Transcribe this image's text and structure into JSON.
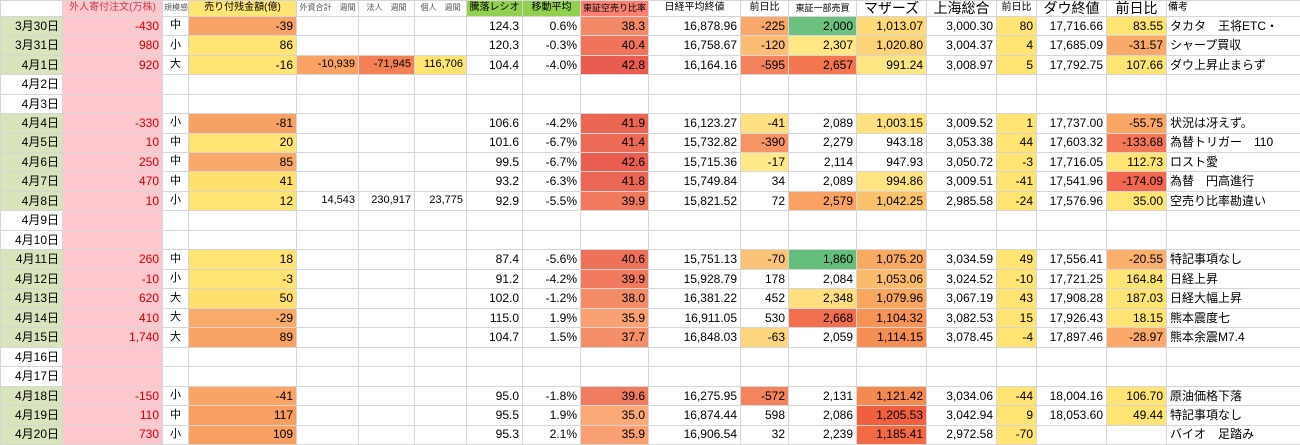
{
  "sheet": {
    "colors": {
      "date_shade": "#d8e4bc",
      "gridline": "#d6d6d6"
    },
    "columns": [
      {
        "key": "date",
        "label": "",
        "width": 62,
        "align": "right",
        "header": {
          "fz": 10
        }
      },
      {
        "key": "foreign-orders",
        "label": "外人寄付注文(万株)",
        "width": 100,
        "align": "right",
        "header": {
          "bg": "#ffc7ce",
          "fg": "#d23b4e",
          "fz": 10
        },
        "body": {
          "bg": "#ffc7ce",
          "fg": "#d60000"
        }
      },
      {
        "key": "scale",
        "label": "規模感",
        "width": 26,
        "align": "center",
        "header": {
          "fg": "#555555",
          "fz": 8
        },
        "body": {
          "fz": 11
        }
      },
      {
        "key": "short-balance",
        "label": "売り付残金額(億)",
        "width": 108,
        "align": "right",
        "header": {
          "bg": "#ffe573",
          "fz": 10
        }
      },
      {
        "key": "foreign-weekly",
        "label": "外資合計　週間",
        "width": 62,
        "align": "right",
        "header": {
          "fg": "#555555",
          "fz": 8
        },
        "body": {
          "fz": 11
        }
      },
      {
        "key": "corporate-weekly",
        "label": "法人　週間",
        "width": 56,
        "align": "right",
        "header": {
          "fg": "#555555",
          "fz": 8
        },
        "body": {
          "fz": 11
        }
      },
      {
        "key": "individual-weekly",
        "label": "個人　週間",
        "width": 52,
        "align": "right",
        "header": {
          "fg": "#555555",
          "fz": 8
        },
        "body": {
          "fz": 11
        }
      },
      {
        "key": "adv-dec-ratio",
        "label": "騰落レシオ",
        "width": 56,
        "align": "right",
        "header": {
          "bg": "#92d050",
          "fz": 10
        }
      },
      {
        "key": "moving-average",
        "label": "移動平均",
        "width": 58,
        "align": "right",
        "header": {
          "bg": "#92d050",
          "fz": 10
        }
      },
      {
        "key": "short-sell-ratio",
        "label": "東証空売り比率",
        "width": 68,
        "align": "right",
        "header": {
          "bg": "#fa8072",
          "fz": 9
        }
      },
      {
        "key": "nikkei-close",
        "label": "日経平均終値",
        "width": 92,
        "align": "right",
        "header": {
          "fz": 10
        }
      },
      {
        "key": "nikkei-change",
        "label": "前日比",
        "width": 48,
        "align": "right",
        "header": {
          "fz": 10
        }
      },
      {
        "key": "tse1-volume",
        "label": "東証一部売買",
        "width": 68,
        "align": "right",
        "header": {
          "fz": 9
        }
      },
      {
        "key": "mothers",
        "label": "マザーズ",
        "width": 70,
        "align": "right",
        "header": {
          "fz": 14
        }
      },
      {
        "key": "shanghai",
        "label": "上海総合",
        "width": 70,
        "align": "right",
        "header": {
          "fz": 14
        }
      },
      {
        "key": "shanghai-change",
        "label": "前日比",
        "width": 40,
        "align": "right",
        "header": {
          "fz": 10
        }
      },
      {
        "key": "dow-close",
        "label": "ダウ終値",
        "width": 70,
        "align": "right",
        "header": {
          "fz": 14
        }
      },
      {
        "key": "dow-change",
        "label": "前日比",
        "width": 60,
        "align": "right",
        "header": {
          "fz": 14
        }
      },
      {
        "key": "notes",
        "label": "備考",
        "width": 134,
        "align": "left",
        "header": {
          "fz": 10,
          "align": "left"
        }
      }
    ],
    "rows": [
      {
        "date": "3月30日",
        "shaded": true,
        "cells": [
          "-430",
          "中",
          {
            "t": "-39",
            "bg": "#f8a266"
          },
          "",
          "",
          "",
          "124.3",
          "0.6%",
          {
            "t": "38.3",
            "bg": "#f38966"
          },
          "16,878.96",
          {
            "t": "-225",
            "bg": "#f9a86b"
          },
          {
            "t": "2,000",
            "bg": "#6cc17e"
          },
          {
            "t": "1,013.07",
            "bg": "#fed97a"
          },
          "3,000.30",
          {
            "t": "80",
            "bg": "#ffe373"
          },
          "17,716.66",
          {
            "t": "83.55",
            "bg": "#ffe373"
          },
          "タカタ　王将ETC・"
        ]
      },
      {
        "date": "3月31日",
        "shaded": true,
        "cells": [
          "980",
          "小",
          {
            "t": "86",
            "bg": "#ffe373"
          },
          "",
          "",
          "",
          "120.3",
          "-0.3%",
          {
            "t": "40.4",
            "bg": "#ef745b"
          },
          "16,758.67",
          {
            "t": "-120",
            "bg": "#fbbd74"
          },
          {
            "t": "2,307",
            "bg": "#ffe884"
          },
          {
            "t": "1,020.80",
            "bg": "#fdd377"
          },
          "3,004.37",
          {
            "t": "4",
            "bg": "#ffe373"
          },
          "17,685.09",
          {
            "t": "-31.57",
            "bg": "#f9a96a"
          },
          "シャープ買収"
        ]
      },
      {
        "date": "4月1日",
        "shaded": true,
        "cells": [
          "920",
          "大",
          {
            "t": "-16",
            "bg": "#ffe373"
          },
          {
            "t": "-10,939",
            "bg": "#f9a263"
          },
          {
            "t": "-71,945",
            "bg": "#f48055"
          },
          {
            "t": "116,706",
            "bg": "#ffe373"
          },
          "104.4",
          "-4.0%",
          {
            "t": "42.8",
            "bg": "#e95c4f"
          },
          "16,164.16",
          {
            "t": "-595",
            "bg": "#f3825c"
          },
          {
            "t": "2,657",
            "bg": "#f3764f"
          },
          {
            "t": "991.24",
            "bg": "#ffe684"
          },
          "3,008.97",
          {
            "t": "5",
            "bg": "#ffe373"
          },
          "17,792.75",
          {
            "t": "107.66",
            "bg": "#ffe373"
          },
          "ダウ上昇止まらず"
        ]
      },
      {
        "date": "4月2日",
        "shaded": false,
        "cells": []
      },
      {
        "date": "4月3日",
        "shaded": false,
        "cells": []
      },
      {
        "date": "4月4日",
        "shaded": true,
        "cells": [
          "-330",
          "小",
          {
            "t": "-81",
            "bg": "#f8a164"
          },
          "",
          "",
          "",
          "106.6",
          "-4.2%",
          {
            "t": "41.9",
            "bg": "#eb6553"
          },
          "16,123.27",
          {
            "t": "-41",
            "bg": "#fee084"
          },
          "2,089",
          {
            "t": "1,003.15",
            "bg": "#ffe07e"
          },
          "3,009.52",
          {
            "t": "1",
            "bg": "#ffe373"
          },
          "17,737.00",
          {
            "t": "-55.75",
            "bg": "#f9a667"
          },
          "状況は冴えず。"
        ]
      },
      {
        "date": "4月5日",
        "shaded": true,
        "cells": [
          "10",
          "中",
          {
            "t": "20",
            "bg": "#ffe373"
          },
          "",
          "",
          "",
          "101.6",
          "-6.7%",
          {
            "t": "41.4",
            "bg": "#ec6a56"
          },
          "15,732.82",
          {
            "t": "-390",
            "bg": "#f79465"
          },
          "2,279",
          "943.18",
          "3,053.38",
          {
            "t": "44",
            "bg": "#ffe373"
          },
          "17,603.32",
          {
            "t": "-133.68",
            "bg": "#f4775a"
          },
          "為替トリガー　110"
        ]
      },
      {
        "date": "4月6日",
        "shaded": true,
        "cells": [
          "250",
          "中",
          {
            "t": "85",
            "bg": "#f9aa68"
          },
          "",
          "",
          "",
          "99.5",
          "-6.7%",
          {
            "t": "42.6",
            "bg": "#e95e50"
          },
          "15,715.36",
          {
            "t": "-17",
            "bg": "#ffe88a"
          },
          "2,114",
          "947.93",
          "3,050.72",
          {
            "t": "-3",
            "bg": "#ffe373"
          },
          "17,716.05",
          {
            "t": "112.73",
            "bg": "#ffe373"
          },
          "ロスト愛"
        ]
      },
      {
        "date": "4月7日",
        "shaded": true,
        "cells": [
          "470",
          "中",
          {
            "t": "41",
            "bg": "#ffe06f"
          },
          "",
          "",
          "",
          "93.2",
          "-6.3%",
          {
            "t": "41.8",
            "bg": "#eb6654"
          },
          "15,749.84",
          "34",
          "2,089",
          {
            "t": "994.86",
            "bg": "#ffe484"
          },
          "3,009.51",
          {
            "t": "-41",
            "bg": "#ffe373"
          },
          "17,541.96",
          {
            "t": "-174.09",
            "bg": "#f2674f"
          },
          "為替　円高進行"
        ]
      },
      {
        "date": "4月8日",
        "shaded": true,
        "cells": [
          "10",
          "小",
          {
            "t": "12",
            "bg": "#ffe373"
          },
          "14,543",
          "230,917",
          "23,775",
          "92.9",
          "-5.5%",
          {
            "t": "39.9",
            "bg": "#f0795e"
          },
          "15,821.52",
          "72",
          {
            "t": "2,579",
            "bg": "#f9a263"
          },
          {
            "t": "1,042.25",
            "bg": "#fbc26e"
          },
          "2,985.58",
          {
            "t": "-24",
            "bg": "#ffe373"
          },
          "17,576.96",
          {
            "t": "35.00",
            "bg": "#ffe373"
          },
          "空売り比率勘違い"
        ]
      },
      {
        "date": "4月9日",
        "shaded": false,
        "cells": []
      },
      {
        "date": "4月10日",
        "shaded": false,
        "cells": []
      },
      {
        "date": "4月11日",
        "shaded": true,
        "cells": [
          "260",
          "中",
          {
            "t": "18",
            "bg": "#ffe373"
          },
          "",
          "",
          "",
          "87.4",
          "-5.6%",
          {
            "t": "40.6",
            "bg": "#ee725a"
          },
          "15,751.13",
          {
            "t": "-70",
            "bg": "#fbc377"
          },
          {
            "t": "1,860",
            "bg": "#63be7b"
          },
          {
            "t": "1,075.20",
            "bg": "#f8aa62"
          },
          "3,034.59",
          {
            "t": "49",
            "bg": "#ffe373"
          },
          "17,556.41",
          {
            "t": "-20.55",
            "bg": "#faaf6c"
          },
          "特記事項なし"
        ]
      },
      {
        "date": "4月12日",
        "shaded": true,
        "cells": [
          "-10",
          "小",
          {
            "t": "-3",
            "bg": "#ffe373"
          },
          "",
          "",
          "",
          "91.2",
          "-4.2%",
          {
            "t": "39.9",
            "bg": "#f0795e"
          },
          "15,928.79",
          "178",
          "2,084",
          {
            "t": "1,053.06",
            "bg": "#fabb6a"
          },
          "3,024.52",
          {
            "t": "-10",
            "bg": "#ffe373"
          },
          "17,721.25",
          {
            "t": "164.84",
            "bg": "#ffe373"
          },
          "日経上昇"
        ]
      },
      {
        "date": "4月13日",
        "shaded": true,
        "cells": [
          "620",
          "大",
          {
            "t": "50",
            "bg": "#ffe06f"
          },
          "",
          "",
          "",
          "102.0",
          "-1.2%",
          {
            "t": "38.0",
            "bg": "#f48c68"
          },
          "16,381.22",
          "452",
          {
            "t": "2,348",
            "bg": "#fede7e"
          },
          {
            "t": "1,079.96",
            "bg": "#f8a760"
          },
          "3,067.19",
          {
            "t": "43",
            "bg": "#ffe373"
          },
          "17,908.28",
          {
            "t": "187.03",
            "bg": "#ffe373"
          },
          "日経大幅上昇"
        ]
      },
      {
        "date": "4月14日",
        "shaded": true,
        "cells": [
          "410",
          "大",
          {
            "t": "-29",
            "bg": "#f9ab69"
          },
          "",
          "",
          "",
          "115.0",
          "1.9%",
          {
            "t": "35.9",
            "bg": "#f9a172"
          },
          "16,911.05",
          "530",
          {
            "t": "2,668",
            "bg": "#f27050"
          },
          {
            "t": "1,104.32",
            "bg": "#f69456"
          },
          "3,082.53",
          {
            "t": "15",
            "bg": "#ffe373"
          },
          "17,926.43",
          {
            "t": "18.15",
            "bg": "#ffe373"
          },
          "熊本震度七"
        ]
      },
      {
        "date": "4月15日",
        "shaded": true,
        "cells": [
          "1,740",
          "大",
          {
            "t": "89",
            "bg": "#f8a263"
          },
          "",
          "",
          "",
          "104.7",
          "1.5%",
          {
            "t": "37.7",
            "bg": "#f58f69"
          },
          "16,848.03",
          {
            "t": "-63",
            "bg": "#fdd67f"
          },
          "2,059",
          {
            "t": "1,114.15",
            "bg": "#f58e53"
          },
          "3,078.45",
          {
            "t": "-4",
            "bg": "#ffe373"
          },
          "17,897.46",
          {
            "t": "-28.97",
            "bg": "#faa96a"
          },
          "熊本余震M7.4"
        ]
      },
      {
        "date": "4月16日",
        "shaded": false,
        "cells": []
      },
      {
        "date": "4月17日",
        "shaded": false,
        "cells": []
      },
      {
        "date": "4月18日",
        "shaded": true,
        "cells": [
          "-150",
          "小",
          {
            "t": "-41",
            "bg": "#f9a465"
          },
          "",
          "",
          "",
          "95.0",
          "-1.8%",
          {
            "t": "39.6",
            "bg": "#f07c5f"
          },
          "16,275.95",
          {
            "t": "-572",
            "bg": "#f3845d"
          },
          "2,131",
          {
            "t": "1,121.42",
            "bg": "#f58a51"
          },
          "3,034.06",
          {
            "t": "-44",
            "bg": "#ffe373"
          },
          "18,004.16",
          {
            "t": "106.70",
            "bg": "#ffe373"
          },
          "原油価格下落"
        ]
      },
      {
        "date": "4月19日",
        "shaded": true,
        "cells": [
          "110",
          "中",
          {
            "t": "117",
            "bg": "#f89e60"
          },
          "",
          "",
          "",
          "95.5",
          "1.9%",
          {
            "t": "35.0",
            "bg": "#fbaa77"
          },
          "16,874.44",
          "598",
          "2,086",
          {
            "t": "1,205.53",
            "bg": "#f15f3e"
          },
          "3,042.94",
          {
            "t": "9",
            "bg": "#ffe373"
          },
          "18,053.60",
          {
            "t": "49.44",
            "bg": "#ffe373"
          },
          "特記事項なし"
        ]
      },
      {
        "date": "4月20日",
        "shaded": true,
        "cells": [
          "730",
          "小",
          {
            "t": "109",
            "bg": "#f8a062"
          },
          "",
          "",
          "",
          "95.3",
          "2.1%",
          {
            "t": "35.9",
            "bg": "#f9a172"
          },
          "16,906.54",
          "32",
          "2,239",
          {
            "t": "1,185.41",
            "bg": "#f26a43"
          },
          "2,972.58",
          {
            "t": "-70",
            "bg": "#ffe373"
          },
          "",
          "",
          "バイオ　足踏み"
        ]
      }
    ]
  }
}
